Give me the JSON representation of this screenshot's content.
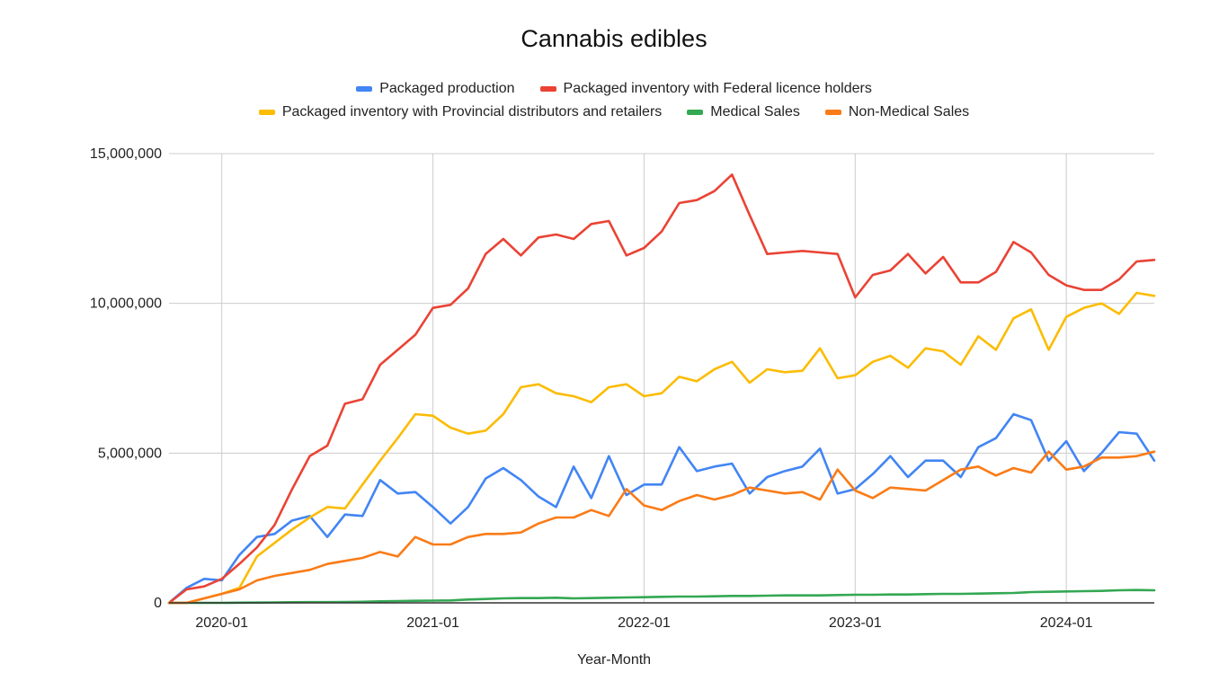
{
  "chart_data": {
    "type": "line",
    "title": "Cannabis edibles",
    "xlabel": "Year-Month",
    "ylabel": "",
    "ylim": [
      0,
      15000000
    ],
    "yticks": [
      0,
      5000000,
      10000000,
      15000000
    ],
    "ytick_labels": [
      "0",
      "5,000,000",
      "10,000,000",
      "15,000,000"
    ],
    "xticks": [
      "2020-01",
      "2021-01",
      "2022-01",
      "2023-01",
      "2024-01"
    ],
    "x": [
      "2019-10",
      "2019-11",
      "2019-12",
      "2020-01",
      "2020-02",
      "2020-03",
      "2020-04",
      "2020-05",
      "2020-06",
      "2020-07",
      "2020-08",
      "2020-09",
      "2020-10",
      "2020-11",
      "2020-12",
      "2021-01",
      "2021-02",
      "2021-03",
      "2021-04",
      "2021-05",
      "2021-06",
      "2021-07",
      "2021-08",
      "2021-09",
      "2021-10",
      "2021-11",
      "2021-12",
      "2022-01",
      "2022-02",
      "2022-03",
      "2022-04",
      "2022-05",
      "2022-06",
      "2022-07",
      "2022-08",
      "2022-09",
      "2022-10",
      "2022-11",
      "2022-12",
      "2023-01",
      "2023-02",
      "2023-03",
      "2023-04",
      "2023-05",
      "2023-06",
      "2023-07",
      "2023-08",
      "2023-09",
      "2023-10",
      "2023-11",
      "2023-12",
      "2024-01",
      "2024-02",
      "2024-03",
      "2024-04",
      "2024-05",
      "2024-06"
    ],
    "legend_position": "top",
    "grid": true,
    "series": [
      {
        "name": "Packaged production",
        "color": "#4285f4",
        "values": [
          0,
          500000,
          800000,
          750000,
          1600000,
          2200000,
          2300000,
          2750000,
          2900000,
          2200000,
          2950000,
          2900000,
          4100000,
          3650000,
          3700000,
          3200000,
          2650000,
          3200000,
          4150000,
          4500000,
          4100000,
          3550000,
          3200000,
          4550000,
          3500000,
          4900000,
          3600000,
          3950000,
          3950000,
          5200000,
          4400000,
          4550000,
          4650000,
          3650000,
          4200000,
          4400000,
          4550000,
          5150000,
          3650000,
          3800000,
          4300000,
          4900000,
          4200000,
          4750000,
          4750000,
          4200000,
          5200000,
          5500000,
          6300000,
          6100000,
          4750000,
          5400000,
          4400000,
          5000000,
          5700000,
          5650000,
          4750000
        ]
      },
      {
        "name": "Packaged inventory with Federal licence holders",
        "color": "#ea4335",
        "values": [
          0,
          450000,
          550000,
          800000,
          1300000,
          1850000,
          2600000,
          3800000,
          4900000,
          5250000,
          6650000,
          6800000,
          7950000,
          8450000,
          8950000,
          9850000,
          9950000,
          10500000,
          11650000,
          12150000,
          11600000,
          12200000,
          12300000,
          12150000,
          12650000,
          12750000,
          11600000,
          11850000,
          12400000,
          13350000,
          13450000,
          13750000,
          14300000,
          12950000,
          11650000,
          11700000,
          11750000,
          11700000,
          11650000,
          10200000,
          10950000,
          11100000,
          11650000,
          11000000,
          11550000,
          10700000,
          10700000,
          11050000,
          12050000,
          11700000,
          10950000,
          10600000,
          10450000,
          10450000,
          10800000,
          11400000,
          11450000
        ]
      },
      {
        "name": "Packaged inventory with Provincial distributors and retailers",
        "color": "#fbbc04",
        "values": [
          0,
          0,
          150000,
          300000,
          500000,
          1550000,
          2000000,
          2450000,
          2850000,
          3200000,
          3150000,
          3950000,
          4750000,
          5500000,
          6300000,
          6250000,
          5850000,
          5650000,
          5750000,
          6300000,
          7200000,
          7300000,
          7000000,
          6900000,
          6700000,
          7200000,
          7300000,
          6900000,
          7000000,
          7550000,
          7400000,
          7800000,
          8050000,
          7350000,
          7800000,
          7700000,
          7750000,
          8500000,
          7500000,
          7600000,
          8050000,
          8250000,
          7850000,
          8500000,
          8400000,
          7950000,
          8900000,
          8450000,
          9500000,
          9800000,
          8450000,
          9550000,
          9850000,
          10000000,
          9650000,
          10350000,
          10250000
        ]
      },
      {
        "name": "Medical Sales",
        "color": "#34a853",
        "values": [
          0,
          0,
          0,
          0,
          5000,
          10000,
          15000,
          20000,
          25000,
          25000,
          30000,
          35000,
          50000,
          60000,
          70000,
          75000,
          80000,
          110000,
          130000,
          150000,
          160000,
          160000,
          170000,
          150000,
          160000,
          170000,
          180000,
          190000,
          200000,
          210000,
          210000,
          220000,
          230000,
          230000,
          240000,
          250000,
          250000,
          250000,
          260000,
          270000,
          270000,
          280000,
          280000,
          290000,
          300000,
          300000,
          310000,
          320000,
          330000,
          360000,
          370000,
          380000,
          390000,
          400000,
          420000,
          430000,
          420000
        ]
      },
      {
        "name": "Non-Medical Sales",
        "color": "#fa7b17",
        "values": [
          0,
          0,
          150000,
          300000,
          450000,
          750000,
          900000,
          1000000,
          1100000,
          1300000,
          1400000,
          1500000,
          1700000,
          1550000,
          2200000,
          1950000,
          1950000,
          2200000,
          2300000,
          2300000,
          2350000,
          2650000,
          2850000,
          2850000,
          3100000,
          2900000,
          3800000,
          3250000,
          3100000,
          3400000,
          3600000,
          3450000,
          3600000,
          3850000,
          3750000,
          3650000,
          3700000,
          3450000,
          4450000,
          3750000,
          3500000,
          3850000,
          3800000,
          3750000,
          4100000,
          4450000,
          4550000,
          4250000,
          4500000,
          4350000,
          5050000,
          4450000,
          4550000,
          4850000,
          4850000,
          4900000,
          5050000
        ]
      }
    ]
  }
}
